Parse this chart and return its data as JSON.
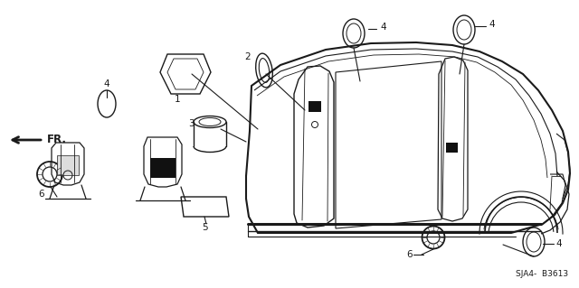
{
  "bg_color": "#ffffff",
  "diagram_ref": "SJA4-  B3613",
  "line_color": "#1a1a1a",
  "font_size": 7.5,
  "lw": 1.0
}
